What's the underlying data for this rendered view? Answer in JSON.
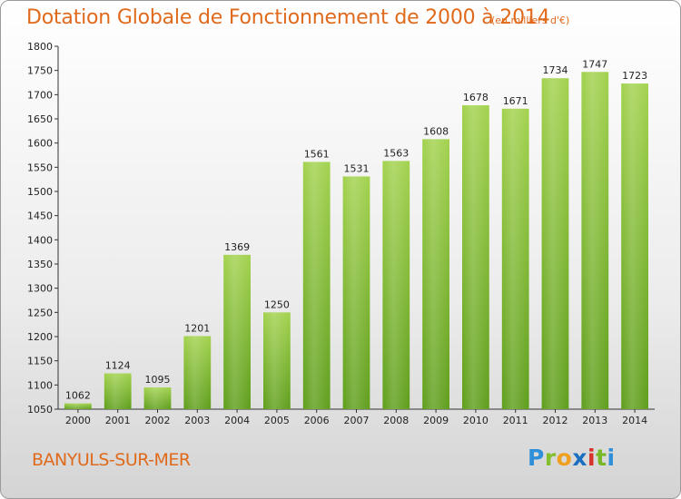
{
  "chart_data": {
    "type": "bar",
    "title": "Dotation Globale de Fonctionnement de 2000 à 2014",
    "subtitle": "(en milliers d'€)",
    "categories": [
      "2000",
      "2001",
      "2002",
      "2003",
      "2004",
      "2005",
      "2006",
      "2007",
      "2008",
      "2009",
      "2010",
      "2011",
      "2012",
      "2013",
      "2014"
    ],
    "values": [
      1062,
      1124,
      1095,
      1201,
      1369,
      1250,
      1561,
      1531,
      1563,
      1608,
      1678,
      1671,
      1734,
      1747,
      1723
    ],
    "ylim": [
      1050,
      1800
    ],
    "yticks": [
      1050,
      1100,
      1150,
      1200,
      1250,
      1300,
      1350,
      1400,
      1450,
      1500,
      1550,
      1600,
      1650,
      1700,
      1750,
      1800
    ],
    "grid": false,
    "bar_color": "#8cc43c"
  },
  "footer": {
    "town": "BANYULS-SUR-MER"
  },
  "logo": {
    "letters": [
      "P",
      "r",
      "o",
      "x",
      "i",
      "t",
      "i"
    ]
  }
}
